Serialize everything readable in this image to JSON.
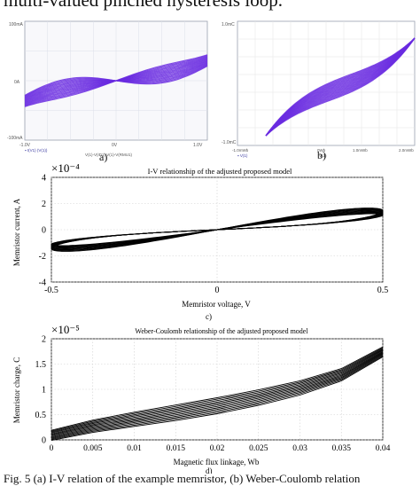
{
  "caption_top": "multi-valued pinched hysteresis loop.",
  "caption_bottom": "Fig. 5  (a) I-V relation of the example memristor, (b) Weber-Coulomb relation",
  "panels": {
    "a": {
      "label": "a)",
      "y_top": "100mA",
      "y_mid": "0A",
      "y_bot": "-100mA",
      "x_left": "-1.0V",
      "x_mid": "0V",
      "x_right": "1.0V",
      "trace_left": "▪ I(V1) (V(1)) ",
      "trace_bottom": "V(1)-V(ID1)  V(1)-V(RMU1)",
      "curve_color": "#6a2be0"
    },
    "b": {
      "label": "b)",
      "y_top": "1.0mC",
      "y_bot": "-1.0mC",
      "x_left": "-1.0mWb",
      "x_mid1": "0Wb",
      "x_mid2": "1.0mWb",
      "x_right": "2.0mWb",
      "trace_left": "▪ V(1)",
      "trace_mid": "V(2)",
      "curve_color": "#6a2be0"
    }
  },
  "chart_data": [
    {
      "type": "line",
      "label": "c)",
      "title": "I-V relationship of the adjusted proposed model",
      "xlabel": "Memristor voltage, V",
      "ylabel": "Memristor current, A",
      "y_exponent": "×10⁻⁴",
      "xlim": [
        -0.5,
        0.5
      ],
      "ylim": [
        -4,
        4
      ],
      "x_ticks": [
        "-0.5",
        "0",
        "0.5"
      ],
      "y_ticks": [
        "4",
        "2",
        "0",
        "-2",
        "-4"
      ],
      "shape": "pinched hysteresis loop through origin, amplitude approx 2 at x = ±0.5",
      "grid": true,
      "color": "#000000"
    },
    {
      "type": "line",
      "label": "d)",
      "title": "Weber-Coulomb relationship of the adjusted proposed model",
      "xlabel": "Magnetic flux linkage, Wb",
      "ylabel": "Memristor charge, C",
      "y_exponent": "×10⁻⁵",
      "xlim": [
        0,
        0.04
      ],
      "ylim": [
        0,
        2
      ],
      "x_ticks": [
        "0",
        "0.005",
        "0.01",
        "0.015",
        "0.02",
        "0.025",
        "0.03",
        "0.035",
        "0.04"
      ],
      "y_ticks": [
        "2",
        "1.5",
        "1",
        "0.5",
        "0"
      ],
      "x": [
        0,
        0.005,
        0.01,
        0.015,
        0.02,
        0.025,
        0.03,
        0.035,
        0.04
      ],
      "y": [
        0.1,
        0.28,
        0.42,
        0.55,
        0.69,
        0.85,
        1.04,
        1.3,
        1.75
      ],
      "grid": true,
      "color": "#000000"
    }
  ]
}
